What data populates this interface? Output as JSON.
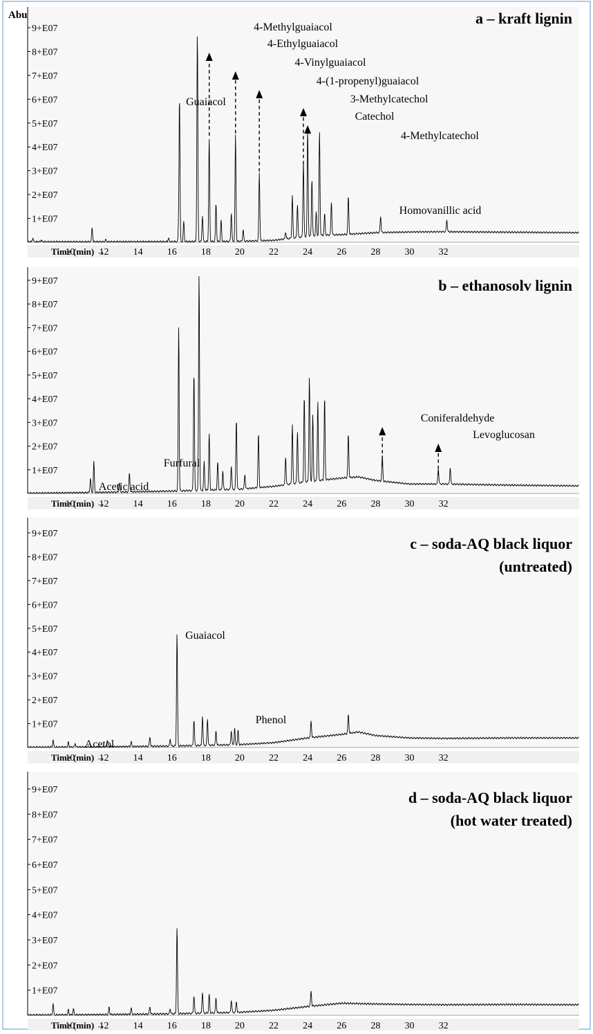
{
  "figure": {
    "y_axis_label": "Abundance",
    "x_axis_label": "Time (min) →",
    "y_tick_labels": [
      "1+E07",
      "2+E07",
      "3+E07",
      "4+E07",
      "5+E07",
      "6+E07",
      "7+E07",
      "8+E07",
      "9+E07"
    ],
    "x_tick_labels": [
      "10",
      "12",
      "14",
      "16",
      "18",
      "20",
      "22",
      "24",
      "26",
      "28",
      "30",
      "32"
    ]
  },
  "chart_data": [
    {
      "type": "line",
      "title": "a – kraft lignin",
      "xlim": [
        7.5,
        40
      ],
      "ylim": [
        0,
        95000000
      ],
      "grid": false,
      "baseline": [
        [
          7.5,
          0.2
        ],
        [
          16,
          0.25
        ],
        [
          20,
          0.4
        ],
        [
          22,
          0.8
        ],
        [
          24,
          2.5
        ],
        [
          25,
          3.0
        ],
        [
          26,
          3.2
        ],
        [
          28,
          4.0
        ],
        [
          30,
          4.3
        ],
        [
          32,
          4.4
        ],
        [
          34,
          4.3
        ],
        [
          36,
          4.2
        ],
        [
          40,
          4.0
        ]
      ],
      "peaks": [
        [
          7.8,
          1.5
        ],
        [
          8.3,
          0.8
        ],
        [
          11.3,
          6.0
        ],
        [
          12.1,
          0.8
        ],
        [
          15.8,
          1.5
        ],
        [
          16.4,
          7.0
        ],
        [
          16.45,
          59.5
        ],
        [
          16.7,
          8.5
        ],
        [
          17.5,
          88.0
        ],
        [
          17.8,
          11.0
        ],
        [
          18.2,
          43.5
        ],
        [
          18.6,
          16.0
        ],
        [
          18.9,
          9.0
        ],
        [
          19.5,
          12.0
        ],
        [
          19.75,
          44.5
        ],
        [
          20.2,
          5.0
        ],
        [
          21.15,
          28.5
        ],
        [
          22.7,
          3.0
        ],
        [
          23.1,
          18.0
        ],
        [
          23.4,
          14.0
        ],
        [
          23.75,
          31.5
        ],
        [
          24.0,
          45.0
        ],
        [
          24.25,
          24.0
        ],
        [
          24.5,
          10.0
        ],
        [
          24.7,
          44.0
        ],
        [
          25.0,
          9.0
        ],
        [
          25.4,
          14.0
        ],
        [
          26.4,
          16.0
        ],
        [
          28.3,
          7.0
        ],
        [
          32.2,
          5.0
        ]
      ],
      "annotations": [
        {
          "text": "Guaiacol",
          "x": 16.45,
          "y": 59.5,
          "arrow": false
        },
        {
          "text": "4-Methylguaiacol",
          "x": 17.5,
          "y": 88.0,
          "arrow": false
        },
        {
          "text": "4-Ethylguaiacol",
          "x": 18.2,
          "y": 43.5,
          "arrow": true
        },
        {
          "text": "4-Vinylguaiacol",
          "x": 19.75,
          "y": 44.5,
          "arrow": true
        },
        {
          "text": "4-(1-propenyl)guaiacol",
          "x": 21.15,
          "y": 28.5,
          "arrow": true
        },
        {
          "text": "3-Methylcatechol",
          "x": 23.75,
          "y": 31.5,
          "arrow": true
        },
        {
          "text": "Catechol",
          "x": 24.0,
          "y": 45.0,
          "arrow": true
        },
        {
          "text": "4-Methylcatechol",
          "x": 24.7,
          "y": 44.0,
          "arrow": false
        },
        {
          "text": "Homovanillic acid",
          "x": 26.4,
          "y": 16.0,
          "arrow": false
        }
      ]
    },
    {
      "type": "line",
      "title": "b – ethanosolv lignin",
      "xlim": [
        7.5,
        40
      ],
      "ylim": [
        0,
        95000000
      ],
      "grid": false,
      "baseline": [
        [
          7.5,
          0.1
        ],
        [
          10,
          0.3
        ],
        [
          12,
          0.5
        ],
        [
          16,
          1.0
        ],
        [
          20,
          1.8
        ],
        [
          22,
          3.0
        ],
        [
          24,
          5.0
        ],
        [
          26,
          6.5
        ],
        [
          27,
          7.0
        ],
        [
          28,
          5.5
        ],
        [
          30,
          4.0
        ],
        [
          32,
          4.0
        ],
        [
          36,
          3.5
        ],
        [
          40,
          3.2
        ]
      ],
      "peaks": [
        [
          11.2,
          6.0
        ],
        [
          11.4,
          13.0
        ],
        [
          12.9,
          4.0
        ],
        [
          13.5,
          8.0
        ],
        [
          16.4,
          69.5
        ],
        [
          17.3,
          50.5
        ],
        [
          17.6,
          92.0
        ],
        [
          17.9,
          12.0
        ],
        [
          18.2,
          24.0
        ],
        [
          18.7,
          12.0
        ],
        [
          19.0,
          8.0
        ],
        [
          19.5,
          10.0
        ],
        [
          19.8,
          30.0
        ],
        [
          20.3,
          6.0
        ],
        [
          21.1,
          23.0
        ],
        [
          22.7,
          12.0
        ],
        [
          23.1,
          25.0
        ],
        [
          23.4,
          22.0
        ],
        [
          23.8,
          36.5
        ],
        [
          24.1,
          44.5
        ],
        [
          24.3,
          28.0
        ],
        [
          24.6,
          33.5
        ],
        [
          25.0,
          35.0
        ],
        [
          26.4,
          18.5
        ],
        [
          28.4,
          10.5
        ],
        [
          31.7,
          6.5
        ],
        [
          32.4,
          7.0
        ]
      ],
      "annotations": [
        {
          "text": "Acetic acid",
          "x": 11.2,
          "y": 6.0,
          "arrow": false
        },
        {
          "text": "Furfural",
          "x": 11.4,
          "y": 13.0,
          "arrow": false
        },
        {
          "text": "Coniferaldehyde",
          "x": 28.4,
          "y": 10.5,
          "arrow": true
        },
        {
          "text": "Levoglucosan",
          "x": 31.7,
          "y": 6.5,
          "arrow": true
        }
      ]
    },
    {
      "type": "line",
      "title": "c – soda-AQ black liquor",
      "subtitle": "(untreated)",
      "xlim": [
        7.5,
        40
      ],
      "ylim": [
        0,
        95000000
      ],
      "grid": false,
      "baseline": [
        [
          7.5,
          0.1
        ],
        [
          12,
          0.3
        ],
        [
          16,
          0.6
        ],
        [
          20,
          1.2
        ],
        [
          22,
          2.0
        ],
        [
          24,
          4.0
        ],
        [
          26,
          5.5
        ],
        [
          27,
          6.5
        ],
        [
          28,
          5.0
        ],
        [
          30,
          4.0
        ],
        [
          32,
          3.8
        ],
        [
          36,
          4.0
        ],
        [
          40,
          4.0
        ]
      ],
      "peaks": [
        [
          9.0,
          3.0
        ],
        [
          9.9,
          2.0
        ],
        [
          10.3,
          1.5
        ],
        [
          12.2,
          3.0
        ],
        [
          13.6,
          2.0
        ],
        [
          14.7,
          4.0
        ],
        [
          15.9,
          3.0
        ],
        [
          16.3,
          47.5
        ],
        [
          17.3,
          11.0
        ],
        [
          17.8,
          12.5
        ],
        [
          18.1,
          11.0
        ],
        [
          18.6,
          6.0
        ],
        [
          19.5,
          6.0
        ],
        [
          19.7,
          7.0
        ],
        [
          19.9,
          6.0
        ],
        [
          24.2,
          7.0
        ],
        [
          26.4,
          8.0
        ]
      ],
      "annotations": [
        {
          "text": "Acetol",
          "x": 9.0,
          "y": 3.0,
          "arrow": false
        },
        {
          "text": "Guaiacol",
          "x": 16.3,
          "y": 47.5,
          "arrow": false
        },
        {
          "text": "Phenol",
          "x": 17.8,
          "y": 12.5,
          "arrow": false
        }
      ]
    },
    {
      "type": "line",
      "title": "d – soda-AQ black liquor",
      "subtitle": "(hot water treated)",
      "xlim": [
        7.5,
        40
      ],
      "ylim": [
        0,
        95000000
      ],
      "grid": false,
      "baseline": [
        [
          7.5,
          0.1
        ],
        [
          12,
          0.3
        ],
        [
          16,
          0.6
        ],
        [
          20,
          1.2
        ],
        [
          22,
          2.0
        ],
        [
          24,
          3.5
        ],
        [
          26,
          4.8
        ],
        [
          28,
          4.5
        ],
        [
          30,
          4.3
        ],
        [
          32,
          4.2
        ],
        [
          36,
          4.3
        ],
        [
          40,
          4.2
        ]
      ],
      "peaks": [
        [
          9.0,
          4.5
        ],
        [
          9.9,
          2.0
        ],
        [
          10.2,
          2.5
        ],
        [
          12.3,
          3.0
        ],
        [
          13.6,
          2.5
        ],
        [
          14.7,
          3.0
        ],
        [
          15.9,
          2.0
        ],
        [
          16.3,
          34.5
        ],
        [
          17.3,
          7.0
        ],
        [
          17.8,
          8.5
        ],
        [
          18.2,
          7.5
        ],
        [
          18.6,
          6.0
        ],
        [
          19.5,
          5.0
        ],
        [
          19.8,
          4.5
        ],
        [
          24.2,
          6.0
        ]
      ],
      "annotations": []
    }
  ]
}
